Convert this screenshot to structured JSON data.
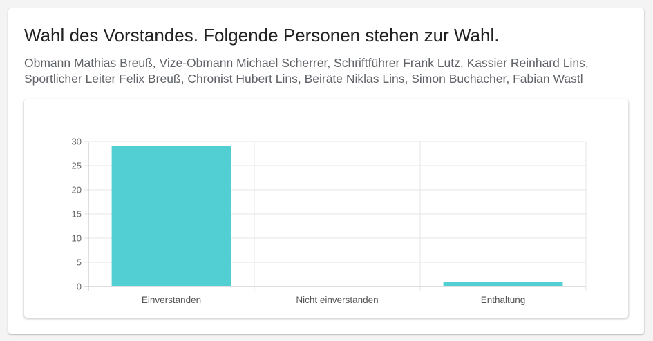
{
  "card": {
    "title": "Wahl des Vorstandes. Folgende Personen stehen zur Wahl.",
    "description": "Obmann Mathias Breuß, Vize-Obmann Michael Scherrer, Schriftführer Frank Lutz, Kassier Reinhard Lins, Sportlicher Leiter Felix Breuß, Chronist Hubert Lins, Beiräte Niklas Lins, Simon Buchacher, Fabian Wastl"
  },
  "chart_data": {
    "type": "bar",
    "categories": [
      "Einverstanden",
      "Nicht einverstanden",
      "Enthaltung"
    ],
    "values": [
      29,
      0,
      1
    ],
    "ylim": [
      0,
      30
    ],
    "yticks": [
      0,
      5,
      10,
      15,
      20,
      25,
      30
    ],
    "grid": true,
    "legend": "none",
    "bar_color": "#52cfd2"
  }
}
